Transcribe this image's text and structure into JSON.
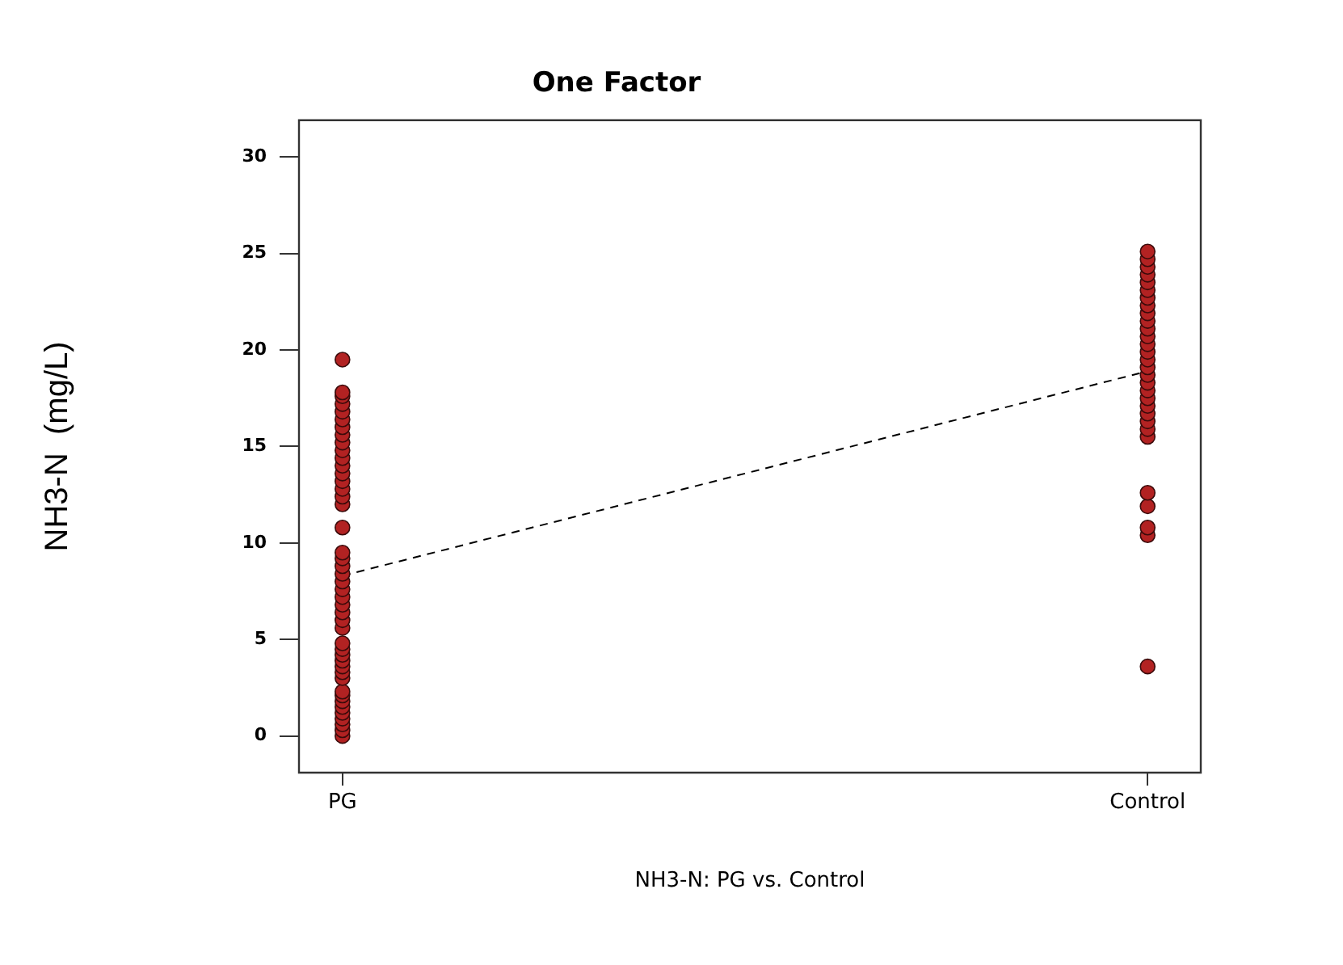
{
  "chart_data": {
    "type": "scatter",
    "title": "One Factor",
    "xlabel": "NH3-N: PG vs. Control",
    "ylabel": "NH3-N  (mg/L)",
    "categories": [
      "PG",
      "Control"
    ],
    "ylim": [
      -1.9,
      31.9
    ],
    "yticks": [
      0,
      5,
      10,
      15,
      20,
      25,
      30
    ],
    "grid": false,
    "legend": false,
    "series": [
      {
        "color": "#b22222",
        "marker": "circle",
        "x": [
          "PG",
          "PG",
          "PG",
          "PG",
          "PG",
          "PG",
          "PG",
          "PG",
          "PG",
          "PG",
          "PG",
          "PG",
          "PG",
          "PG",
          "PG",
          "PG",
          "PG",
          "PG",
          "PG",
          "PG",
          "PG",
          "PG",
          "PG",
          "PG",
          "PG",
          "PG",
          "PG",
          "PG",
          "PG",
          "PG",
          "PG",
          "PG",
          "PG",
          "PG",
          "PG",
          "PG",
          "PG",
          "PG",
          "PG",
          "PG",
          "PG",
          "PG",
          "PG",
          "PG",
          "PG",
          "Control",
          "Control",
          "Control",
          "Control",
          "Control",
          "Control",
          "Control",
          "Control",
          "Control",
          "Control",
          "Control",
          "Control",
          "Control",
          "Control",
          "Control",
          "Control",
          "Control",
          "Control",
          "Control",
          "Control",
          "Control",
          "Control",
          "Control",
          "Control",
          "Control",
          "Control",
          "Control",
          "Control",
          "Control",
          "Control"
        ],
        "values": [
          0,
          0.3,
          0.6,
          0.9,
          1.2,
          1.5,
          1.8,
          2.1,
          2.3,
          3.0,
          3.3,
          3.6,
          3.9,
          4.2,
          4.5,
          4.8,
          5.6,
          6.0,
          6.4,
          6.8,
          7.2,
          7.6,
          8.0,
          8.4,
          8.8,
          9.2,
          9.5,
          10.8,
          12.0,
          12.4,
          12.8,
          13.2,
          13.6,
          14.0,
          14.4,
          14.8,
          15.2,
          15.6,
          16.0,
          16.4,
          16.8,
          17.2,
          17.6,
          17.8,
          19.5,
          3.6,
          10.4,
          10.8,
          11.9,
          12.6,
          15.5,
          15.9,
          16.3,
          16.7,
          17.1,
          17.5,
          17.9,
          18.3,
          18.7,
          19.1,
          19.5,
          19.9,
          20.3,
          20.7,
          21.1,
          21.5,
          21.9,
          22.3,
          22.7,
          23.1,
          23.5,
          23.9,
          24.3,
          24.7,
          25.1
        ]
      },
      {
        "type": "line",
        "color": "#000000",
        "marker": "none",
        "line_style": "dashed",
        "x": [
          "PG",
          "Control"
        ],
        "values": [
          8.3,
          18.9
        ]
      }
    ]
  }
}
